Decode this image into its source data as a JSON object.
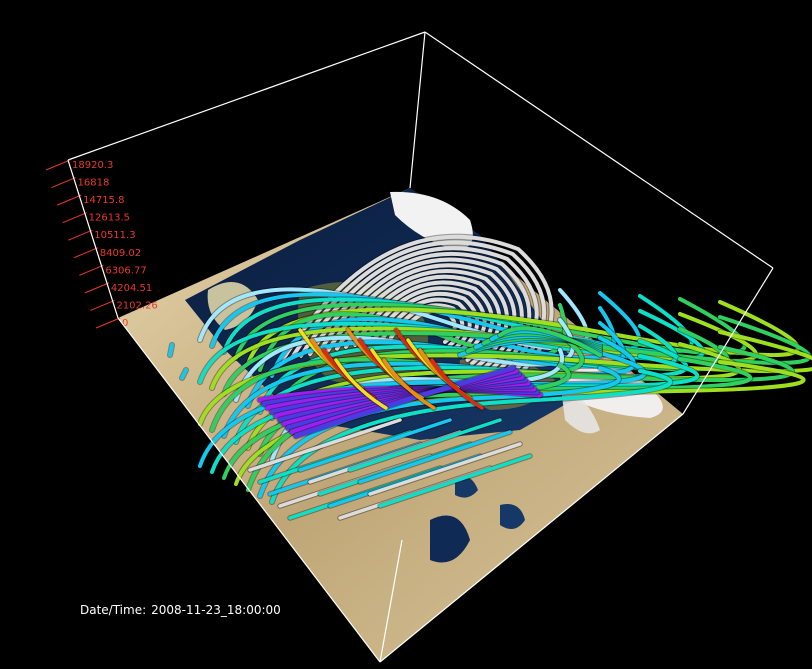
{
  "axis": {
    "color": "#e83a2a",
    "ticks": [
      "18920.3",
      "16818",
      "14715.8",
      "12613.5",
      "10511.3",
      "8409.02",
      "6306.77",
      "4204.51",
      "2102.26",
      "0"
    ]
  },
  "timestamp": {
    "label": "Date/Time:",
    "value": "2008-11-23_18:00:00"
  },
  "colors": {
    "background": "#000000",
    "box_edges": "#ffffff",
    "ocean": "#0d2347",
    "land": "#cdb98a",
    "snow": "#f2f2f2"
  },
  "streamline_colormap": [
    "#a0e8ff",
    "#14c8f0",
    "#0ee0c8",
    "#30d060",
    "#9ee020",
    "#f0e020",
    "#f08a10",
    "#e02a10",
    "#4a3ce0",
    "#9a20f0",
    "#dcdcdc"
  ]
}
